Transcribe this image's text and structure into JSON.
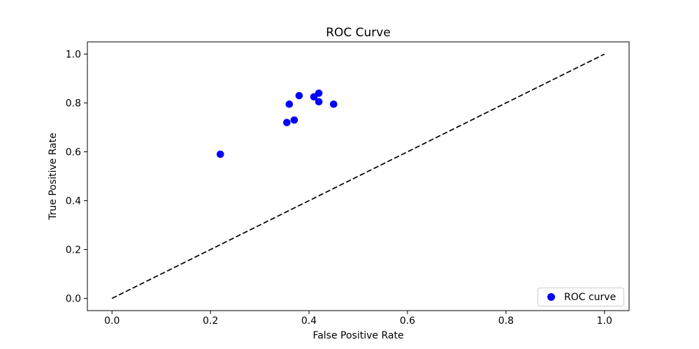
{
  "figure": {
    "background": "#ffffff",
    "text_color": "#000000",
    "spine_color": "#000000"
  },
  "chart_data": {
    "type": "scatter",
    "title": "ROC Curve",
    "xlabel": "False Positive Rate",
    "ylabel": "True Positive Rate",
    "xlim": [
      -0.05,
      1.05
    ],
    "ylim": [
      -0.05,
      1.05
    ],
    "grid": false,
    "xticks": [
      {
        "value": 0.0,
        "label": "0.0"
      },
      {
        "value": 0.2,
        "label": "0.2"
      },
      {
        "value": 0.4,
        "label": "0.4"
      },
      {
        "value": 0.6,
        "label": "0.6"
      },
      {
        "value": 0.8,
        "label": "0.8"
      },
      {
        "value": 1.0,
        "label": "1.0"
      }
    ],
    "yticks": [
      {
        "value": 0.0,
        "label": "0.0"
      },
      {
        "value": 0.2,
        "label": "0.2"
      },
      {
        "value": 0.4,
        "label": "0.4"
      },
      {
        "value": 0.6,
        "label": "0.6"
      },
      {
        "value": 0.8,
        "label": "0.8"
      },
      {
        "value": 1.0,
        "label": "1.0"
      }
    ],
    "series": [
      {
        "name": "chance-diagonal",
        "type": "line",
        "style": "dashed",
        "color": "#000000",
        "linewidth": 1.7,
        "dash": "7.5 3.5",
        "points": [
          [
            0.0,
            0.0
          ],
          [
            1.0,
            1.0
          ]
        ]
      },
      {
        "name": "ROC curve",
        "type": "scatter",
        "color": "#0000ff",
        "marker": "circle",
        "marker_radius": 5.3,
        "points": [
          [
            0.22,
            0.59
          ],
          [
            0.355,
            0.72
          ],
          [
            0.37,
            0.73
          ],
          [
            0.36,
            0.795
          ],
          [
            0.38,
            0.83
          ],
          [
            0.41,
            0.825
          ],
          [
            0.42,
            0.84
          ],
          [
            0.42,
            0.805
          ],
          [
            0.45,
            0.795
          ]
        ]
      }
    ],
    "legend": {
      "position": "lower right",
      "entries": [
        {
          "label": "ROC curve",
          "marker": "circle",
          "color": "#0000ff"
        }
      ]
    }
  }
}
